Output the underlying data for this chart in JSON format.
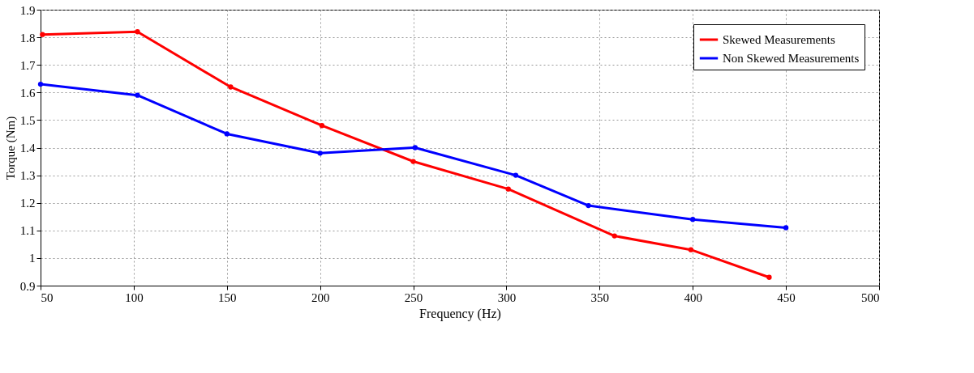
{
  "chart_data": {
    "type": "line",
    "xlabel": "Frequency (Hz)",
    "ylabel": "Torque (Nm)",
    "xlim": [
      50,
      500
    ],
    "xticks": [
      50,
      100,
      150,
      200,
      250,
      300,
      350,
      400,
      450,
      500
    ],
    "ylim": [
      0.9,
      1.9
    ],
    "yticks": [
      0.9,
      1,
      1.1,
      1.2,
      1.3,
      1.4,
      1.5,
      1.6,
      1.7,
      1.8,
      1.9
    ],
    "grid": true,
    "legend": "top right",
    "marker": "circle",
    "line_style": "solid",
    "series": [
      {
        "name": "Skewed Measurements",
        "color": "#ff0000",
        "x": [
          51,
          102,
          152,
          201,
          250,
          301,
          358,
          399,
          441
        ],
        "values": [
          1.81,
          1.82,
          1.62,
          1.48,
          1.35,
          1.25,
          1.08,
          1.03,
          0.93
        ]
      },
      {
        "name": "Non Skewed Measurements",
        "color": "#0000ff",
        "x": [
          50,
          102,
          150,
          200,
          251,
          305,
          344,
          400,
          450
        ],
        "values": [
          1.63,
          1.59,
          1.45,
          1.38,
          1.4,
          1.3,
          1.19,
          1.14,
          1.11
        ]
      }
    ]
  }
}
